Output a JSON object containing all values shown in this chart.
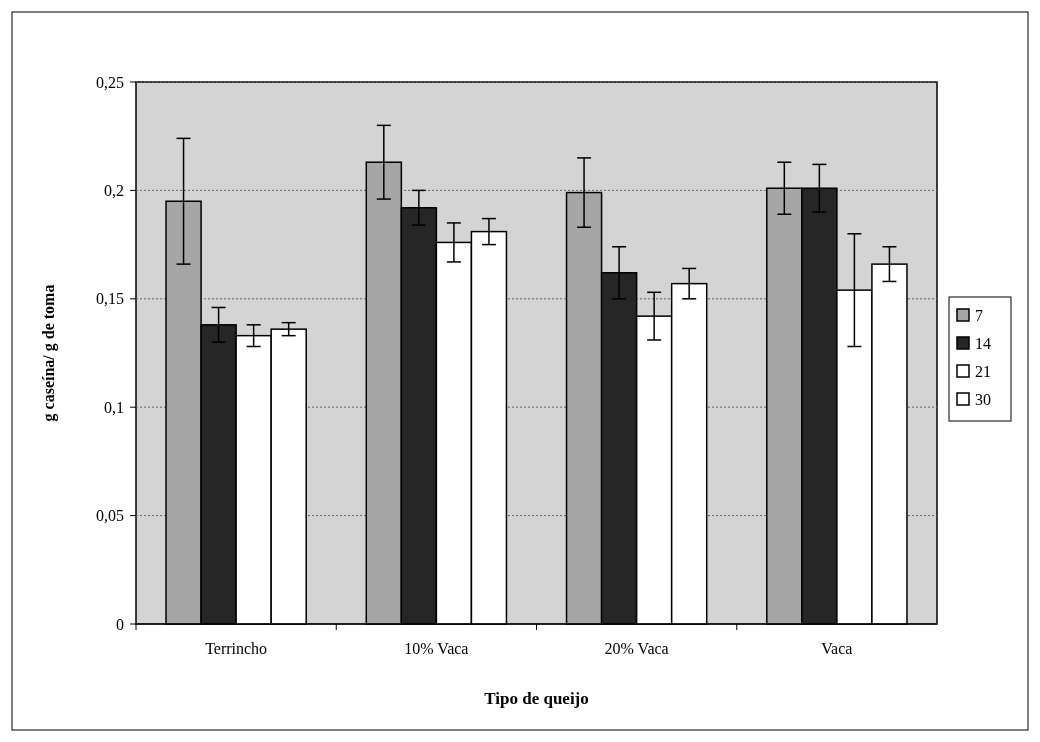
{
  "chart_data": {
    "type": "bar",
    "xlabel": "Tipo de queijo",
    "ylabel": "g caseína/ g de toma",
    "categories": [
      "Terrincho",
      "10% Vaca",
      "20% Vaca",
      "Vaca"
    ],
    "series": [
      {
        "name": "7",
        "color": "#a6a6a6",
        "values": [
          0.195,
          0.213,
          0.199,
          0.201
        ],
        "errors": [
          0.029,
          0.017,
          0.016,
          0.012
        ]
      },
      {
        "name": "14",
        "color": "#262626",
        "values": [
          0.138,
          0.192,
          0.162,
          0.201
        ],
        "errors": [
          0.008,
          0.008,
          0.012,
          0.011
        ]
      },
      {
        "name": "21",
        "color": "#ffffff",
        "values": [
          0.133,
          0.176,
          0.142,
          0.154
        ],
        "errors": [
          0.005,
          0.009,
          0.011,
          0.026
        ]
      },
      {
        "name": "30",
        "color": "#ffffff",
        "values": [
          0.136,
          0.181,
          0.157,
          0.166
        ],
        "errors": [
          0.003,
          0.006,
          0.007,
          0.008
        ]
      }
    ],
    "ylim": [
      0,
      0.25
    ],
    "yticks": [
      0,
      {
        "value": 0.05,
        "label": "0,05"
      },
      {
        "value": 0.1,
        "label": "0,1"
      },
      {
        "value": 0.15,
        "label": "0,15"
      },
      {
        "value": 0.2,
        "label": "0,2"
      },
      {
        "value": 0.25,
        "label": "0,25"
      }
    ],
    "grid": "y",
    "legend": "right"
  }
}
